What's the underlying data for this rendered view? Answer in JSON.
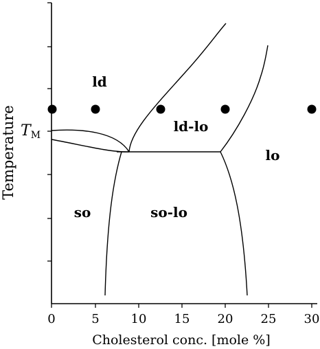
{
  "axes": {
    "xlabel": "Cholesterol conc. [mole %]",
    "ylabel": "Temperature",
    "x_ticks": [
      "0",
      "5",
      "10",
      "15",
      "20",
      "25",
      "30"
    ],
    "tm_label_main": "T",
    "tm_label_sub": "M"
  },
  "phases": {
    "ld": "ld",
    "ld_lo": "ld-lo",
    "lo": "lo",
    "so": "so",
    "so_lo": "so-lo"
  },
  "points": {
    "description_x_mole_percent": [
      0,
      5,
      12.5,
      20,
      30
    ]
  },
  "colors": {
    "stroke": "#000000",
    "background": "#ffffff"
  }
}
